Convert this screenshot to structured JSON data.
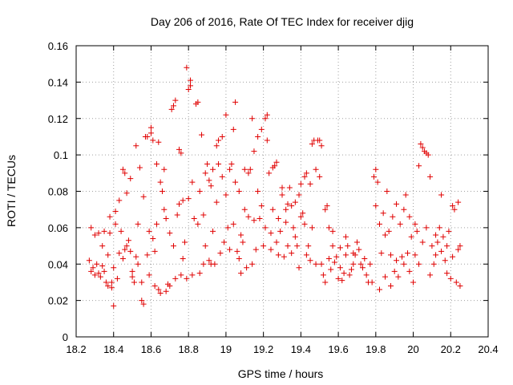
{
  "chart_data": {
    "type": "scatter",
    "title": "Day 206 of 2016, Rate Of TEC Index for receiver djig",
    "xlabel": "GPS time / hours",
    "ylabel": "ROTI / TECUs",
    "xlim": [
      18.2,
      20.4
    ],
    "ylim": [
      0,
      0.16
    ],
    "x_ticks": [
      18.2,
      18.4,
      18.6,
      18.8,
      19.0,
      19.2,
      19.4,
      19.6,
      19.8,
      20.0,
      20.2,
      20.4
    ],
    "x_tick_labels": [
      "18.2",
      "18.4",
      "18.6",
      "18.8",
      "19",
      "19.2",
      "19.4",
      "19.6",
      "19.8",
      "20",
      "20.2",
      "20.4"
    ],
    "y_ticks": [
      0,
      0.02,
      0.04,
      0.06,
      0.08,
      0.1,
      0.12,
      0.14,
      0.16
    ],
    "y_tick_labels": [
      "0",
      "0.02",
      "0.04",
      "0.06",
      "0.08",
      "0.1",
      "0.12",
      "0.14",
      "0.16"
    ],
    "grid": true,
    "marker": "+",
    "color": "#e00000",
    "series": [
      {
        "name": "ROTI",
        "points": [
          [
            18.27,
            0.042
          ],
          [
            18.28,
            0.036
          ],
          [
            18.28,
            0.06
          ],
          [
            18.29,
            0.038
          ],
          [
            18.3,
            0.034
          ],
          [
            18.3,
            0.056
          ],
          [
            18.31,
            0.04
          ],
          [
            18.32,
            0.035
          ],
          [
            18.32,
            0.057
          ],
          [
            18.33,
            0.033
          ],
          [
            18.34,
            0.039
          ],
          [
            18.34,
            0.05
          ],
          [
            18.35,
            0.036
          ],
          [
            18.35,
            0.058
          ],
          [
            18.36,
            0.03
          ],
          [
            18.37,
            0.045
          ],
          [
            18.37,
            0.028
          ],
          [
            18.38,
            0.057
          ],
          [
            18.38,
            0.066
          ],
          [
            18.39,
            0.03
          ],
          [
            18.39,
            0.027
          ],
          [
            18.4,
            0.017
          ],
          [
            18.4,
            0.038
          ],
          [
            18.41,
            0.069
          ],
          [
            18.41,
            0.062
          ],
          [
            18.42,
            0.032
          ],
          [
            18.43,
            0.046
          ],
          [
            18.43,
            0.075
          ],
          [
            18.44,
            0.058
          ],
          [
            18.45,
            0.043
          ],
          [
            18.45,
            0.092
          ],
          [
            18.46,
            0.09
          ],
          [
            18.46,
            0.048
          ],
          [
            18.47,
            0.079
          ],
          [
            18.47,
            0.05
          ],
          [
            18.48,
            0.053
          ],
          [
            18.49,
            0.087
          ],
          [
            18.49,
            0.047
          ],
          [
            18.5,
            0.033
          ],
          [
            18.5,
            0.036
          ],
          [
            18.51,
            0.03
          ],
          [
            18.52,
            0.105
          ],
          [
            18.52,
            0.044
          ],
          [
            18.53,
            0.062
          ],
          [
            18.53,
            0.04
          ],
          [
            18.54,
            0.093
          ],
          [
            18.55,
            0.03
          ],
          [
            18.55,
            0.02
          ],
          [
            18.56,
            0.018
          ],
          [
            18.56,
            0.077
          ],
          [
            18.57,
            0.11
          ],
          [
            18.58,
            0.11
          ],
          [
            18.58,
            0.045
          ],
          [
            18.59,
            0.034
          ],
          [
            18.59,
            0.058
          ],
          [
            18.6,
            0.115
          ],
          [
            18.6,
            0.112
          ],
          [
            18.61,
            0.108
          ],
          [
            18.61,
            0.054
          ],
          [
            18.62,
            0.047
          ],
          [
            18.62,
            0.028
          ],
          [
            18.63,
            0.062
          ],
          [
            18.63,
            0.095
          ],
          [
            18.64,
            0.026
          ],
          [
            18.64,
            0.107
          ],
          [
            18.65,
            0.085
          ],
          [
            18.65,
            0.024
          ],
          [
            18.66,
            0.08
          ],
          [
            18.67,
            0.07
          ],
          [
            18.67,
            0.092
          ],
          [
            18.68,
            0.025
          ],
          [
            18.68,
            0.065
          ],
          [
            18.69,
            0.029
          ],
          [
            18.7,
            0.028
          ],
          [
            18.7,
            0.057
          ],
          [
            18.71,
            0.125
          ],
          [
            18.72,
            0.127
          ],
          [
            18.72,
            0.05
          ],
          [
            18.73,
            0.13
          ],
          [
            18.73,
            0.032
          ],
          [
            18.74,
            0.067
          ],
          [
            18.75,
            0.073
          ],
          [
            18.75,
            0.103
          ],
          [
            18.76,
            0.101
          ],
          [
            18.76,
            0.034
          ],
          [
            18.77,
            0.043
          ],
          [
            18.77,
            0.075
          ],
          [
            18.78,
            0.052
          ],
          [
            18.79,
            0.148
          ],
          [
            18.79,
            0.032
          ],
          [
            18.8,
            0.136
          ],
          [
            18.8,
            0.076
          ],
          [
            18.81,
            0.141
          ],
          [
            18.81,
            0.138
          ],
          [
            18.82,
            0.085
          ],
          [
            18.82,
            0.034
          ],
          [
            18.83,
            0.065
          ],
          [
            18.84,
            0.128
          ],
          [
            18.85,
            0.129
          ],
          [
            18.85,
            0.062
          ],
          [
            18.86,
            0.035
          ],
          [
            18.86,
            0.08
          ],
          [
            18.87,
            0.111
          ],
          [
            18.88,
            0.04
          ],
          [
            18.88,
            0.067
          ],
          [
            18.89,
            0.09
          ],
          [
            18.89,
            0.05
          ],
          [
            18.9,
            0.095
          ],
          [
            18.91,
            0.086
          ],
          [
            18.91,
            0.042
          ],
          [
            18.92,
            0.083
          ],
          [
            18.92,
            0.04
          ],
          [
            18.93,
            0.092
          ],
          [
            18.93,
            0.058
          ],
          [
            18.94,
            0.04
          ],
          [
            18.95,
            0.074
          ],
          [
            18.95,
            0.105
          ],
          [
            18.96,
            0.095
          ],
          [
            18.96,
            0.108
          ],
          [
            18.97,
            0.046
          ],
          [
            18.98,
            0.11
          ],
          [
            18.98,
            0.088
          ],
          [
            18.99,
            0.052
          ],
          [
            19.0,
            0.122
          ],
          [
            19.0,
            0.078
          ],
          [
            19.01,
            0.06
          ],
          [
            19.02,
            0.092
          ],
          [
            19.02,
            0.048
          ],
          [
            19.03,
            0.095
          ],
          [
            19.04,
            0.062
          ],
          [
            19.04,
            0.114
          ],
          [
            19.05,
            0.129
          ],
          [
            19.05,
            0.085
          ],
          [
            19.06,
            0.047
          ],
          [
            19.07,
            0.08
          ],
          [
            19.07,
            0.043
          ],
          [
            19.08,
            0.035
          ],
          [
            19.08,
            0.056
          ],
          [
            19.09,
            0.052
          ],
          [
            19.1,
            0.092
          ],
          [
            19.1,
            0.07
          ],
          [
            19.11,
            0.038
          ],
          [
            19.12,
            0.09
          ],
          [
            19.12,
            0.066
          ],
          [
            19.13,
            0.092
          ],
          [
            19.14,
            0.04
          ],
          [
            19.14,
            0.12
          ],
          [
            19.15,
            0.102
          ],
          [
            19.15,
            0.064
          ],
          [
            19.16,
            0.048
          ],
          [
            19.17,
            0.08
          ],
          [
            19.17,
            0.11
          ],
          [
            19.18,
            0.065
          ],
          [
            19.19,
            0.072
          ],
          [
            19.19,
            0.114
          ],
          [
            19.2,
            0.05
          ],
          [
            19.21,
            0.12
          ],
          [
            19.21,
            0.06
          ],
          [
            19.22,
            0.122
          ],
          [
            19.22,
            0.108
          ],
          [
            19.23,
            0.09
          ],
          [
            19.24,
            0.057
          ],
          [
            19.24,
            0.048
          ],
          [
            19.25,
            0.093
          ],
          [
            19.25,
            0.07
          ],
          [
            19.26,
            0.094
          ],
          [
            19.27,
            0.052
          ],
          [
            19.27,
            0.096
          ],
          [
            19.28,
            0.045
          ],
          [
            19.28,
            0.065
          ],
          [
            19.29,
            0.058
          ],
          [
            19.3,
            0.078
          ],
          [
            19.3,
            0.082
          ],
          [
            19.31,
            0.044
          ],
          [
            19.32,
            0.063
          ],
          [
            19.32,
            0.07
          ],
          [
            19.33,
            0.073
          ],
          [
            19.33,
            0.05
          ],
          [
            19.34,
            0.082
          ],
          [
            19.35,
            0.046
          ],
          [
            19.35,
            0.072
          ],
          [
            19.36,
            0.06
          ],
          [
            19.37,
            0.055
          ],
          [
            19.37,
            0.074
          ],
          [
            19.38,
            0.05
          ],
          [
            19.39,
            0.078
          ],
          [
            19.39,
            0.038
          ],
          [
            19.4,
            0.066
          ],
          [
            19.4,
            0.084
          ],
          [
            19.41,
            0.068
          ],
          [
            19.42,
            0.062
          ],
          [
            19.42,
            0.088
          ],
          [
            19.43,
            0.045
          ],
          [
            19.43,
            0.09
          ],
          [
            19.44,
            0.05
          ],
          [
            19.45,
            0.084
          ],
          [
            19.45,
            0.042
          ],
          [
            19.46,
            0.106
          ],
          [
            19.46,
            0.06
          ],
          [
            19.47,
            0.108
          ],
          [
            19.48,
            0.092
          ],
          [
            19.48,
            0.04
          ],
          [
            19.49,
            0.108
          ],
          [
            19.5,
            0.088
          ],
          [
            19.5,
            0.108
          ],
          [
            19.51,
            0.105
          ],
          [
            19.51,
            0.04
          ],
          [
            19.52,
            0.034
          ],
          [
            19.53,
            0.03
          ],
          [
            19.53,
            0.07
          ],
          [
            19.54,
            0.072
          ],
          [
            19.55,
            0.06
          ],
          [
            19.55,
            0.043
          ],
          [
            19.56,
            0.037
          ],
          [
            19.57,
            0.05
          ],
          [
            19.57,
            0.058
          ],
          [
            19.58,
            0.041
          ],
          [
            19.59,
            0.044
          ],
          [
            19.6,
            0.032
          ],
          [
            19.61,
            0.038
          ],
          [
            19.61,
            0.049
          ],
          [
            19.62,
            0.031
          ],
          [
            19.63,
            0.035
          ],
          [
            19.64,
            0.055
          ],
          [
            19.64,
            0.045
          ],
          [
            19.65,
            0.05
          ],
          [
            19.66,
            0.034
          ],
          [
            19.67,
            0.037
          ],
          [
            19.68,
            0.04
          ],
          [
            19.68,
            0.046
          ],
          [
            19.69,
            0.045
          ],
          [
            19.7,
            0.052
          ],
          [
            19.71,
            0.048
          ],
          [
            19.72,
            0.04
          ],
          [
            19.73,
            0.038
          ],
          [
            19.74,
            0.043
          ],
          [
            19.75,
            0.034
          ],
          [
            19.76,
            0.03
          ],
          [
            19.77,
            0.04
          ],
          [
            19.78,
            0.03
          ],
          [
            19.79,
            0.088
          ],
          [
            19.8,
            0.092
          ],
          [
            19.8,
            0.072
          ],
          [
            19.81,
            0.085
          ],
          [
            19.82,
            0.062
          ],
          [
            19.82,
            0.026
          ],
          [
            19.83,
            0.046
          ],
          [
            19.84,
            0.068
          ],
          [
            19.85,
            0.056
          ],
          [
            19.85,
            0.033
          ],
          [
            19.86,
            0.08
          ],
          [
            19.87,
            0.058
          ],
          [
            19.88,
            0.045
          ],
          [
            19.88,
            0.028
          ],
          [
            19.89,
            0.066
          ],
          [
            19.9,
            0.036
          ],
          [
            19.91,
            0.073
          ],
          [
            19.91,
            0.042
          ],
          [
            19.92,
            0.033
          ],
          [
            19.93,
            0.062
          ],
          [
            19.94,
            0.044
          ],
          [
            19.95,
            0.07
          ],
          [
            19.95,
            0.04
          ],
          [
            19.96,
            0.078
          ],
          [
            19.97,
            0.046
          ],
          [
            19.98,
            0.066
          ],
          [
            19.98,
            0.036
          ],
          [
            19.99,
            0.055
          ],
          [
            20.0,
            0.03
          ],
          [
            20.01,
            0.062
          ],
          [
            20.01,
            0.045
          ],
          [
            20.02,
            0.058
          ],
          [
            20.03,
            0.04
          ],
          [
            20.03,
            0.094
          ],
          [
            20.04,
            0.106
          ],
          [
            20.05,
            0.104
          ],
          [
            20.05,
            0.052
          ],
          [
            20.06,
            0.102
          ],
          [
            20.07,
            0.101
          ],
          [
            20.07,
            0.06
          ],
          [
            20.08,
            0.1
          ],
          [
            20.09,
            0.088
          ],
          [
            20.09,
            0.034
          ],
          [
            20.1,
            0.05
          ],
          [
            20.11,
            0.04
          ],
          [
            20.12,
            0.056
          ],
          [
            20.12,
            0.045
          ],
          [
            20.13,
            0.052
          ],
          [
            20.14,
            0.06
          ],
          [
            20.15,
            0.078
          ],
          [
            20.15,
            0.047
          ],
          [
            20.16,
            0.055
          ],
          [
            20.17,
            0.042
          ],
          [
            20.18,
            0.05
          ],
          [
            20.18,
            0.035
          ],
          [
            20.19,
            0.058
          ],
          [
            20.2,
            0.032
          ],
          [
            20.21,
            0.072
          ],
          [
            20.21,
            0.044
          ],
          [
            20.22,
            0.07
          ],
          [
            20.23,
            0.03
          ],
          [
            20.24,
            0.074
          ],
          [
            20.24,
            0.048
          ],
          [
            20.25,
            0.028
          ],
          [
            20.25,
            0.05
          ]
        ]
      }
    ]
  }
}
